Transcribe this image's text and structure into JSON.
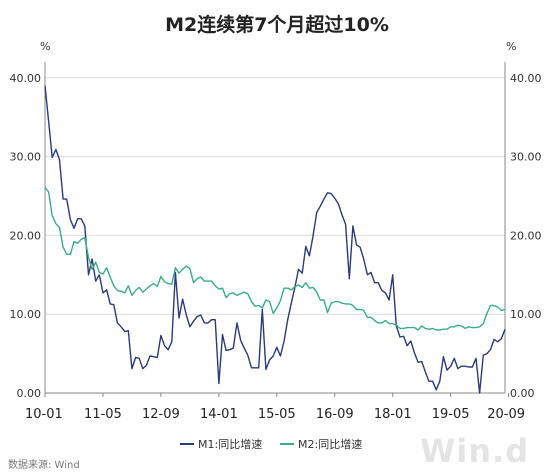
{
  "chart_data": {
    "type": "line",
    "title": "M2连续第7个月超过10%",
    "y_unit_left": "%",
    "y_unit_right": "%",
    "ylim": [
      0,
      42
    ],
    "yticks": [
      "0.00",
      "10.00",
      "20.00",
      "30.00",
      "40.00"
    ],
    "ytick_values": [
      0,
      10,
      20,
      30,
      40
    ],
    "xticks": [
      "10-01",
      "11-05",
      "12-09",
      "14-01",
      "15-05",
      "16-09",
      "18-01",
      "19-05",
      "20-09"
    ],
    "xtick_index": [
      0,
      16,
      32,
      48,
      64,
      80,
      96,
      112,
      128
    ],
    "grid": true,
    "legend_position": "bottom",
    "series": [
      {
        "name": "M1:同比增速",
        "color": "#2b3a7a",
        "values": [
          39.0,
          34.5,
          29.9,
          30.9,
          29.6,
          24.6,
          24.6,
          22.0,
          20.9,
          22.1,
          22.1,
          21.2,
          15.0,
          17.0,
          14.2,
          15.0,
          12.7,
          13.1,
          11.3,
          11.2,
          8.9,
          8.4,
          7.8,
          7.9,
          3.1,
          4.5,
          4.4,
          3.1,
          3.5,
          4.7,
          4.6,
          4.5,
          7.3,
          6.0,
          5.5,
          6.5,
          15.3,
          9.5,
          11.9,
          9.9,
          8.4,
          9.1,
          9.7,
          9.9,
          8.9,
          8.9,
          9.3,
          9.3,
          1.2,
          7.4,
          5.4,
          5.5,
          5.7,
          8.9,
          6.7,
          5.7,
          4.8,
          3.2,
          3.2,
          3.2,
          10.6,
          3.0,
          4.2,
          4.7,
          5.8,
          4.7,
          6.6,
          9.3,
          11.4,
          13.4,
          15.7,
          15.2,
          18.6,
          17.4,
          19.9,
          22.9,
          23.7,
          24.6,
          25.4,
          25.3,
          24.7,
          24.0,
          22.6,
          21.4,
          14.5,
          21.2,
          18.8,
          18.5,
          17.0,
          15.0,
          15.3,
          14.0,
          14.0,
          13.0,
          12.7,
          11.8,
          15.0,
          8.5,
          7.1,
          7.2,
          6.0,
          6.6,
          5.1,
          3.9,
          4.0,
          2.7,
          1.5,
          1.5,
          0.4,
          1.5,
          4.6,
          2.9,
          3.4,
          4.4,
          3.1,
          3.4,
          3.4,
          3.3,
          3.3,
          4.4,
          0.0,
          4.8,
          5.0,
          5.5,
          6.8,
          6.5,
          6.9,
          8.1
        ]
      },
      {
        "name": "M2:同比增速",
        "color": "#3cab8a",
        "values": [
          26.1,
          25.5,
          22.5,
          21.5,
          21.0,
          18.5,
          17.6,
          17.6,
          19.2,
          19.0,
          19.5,
          19.7,
          17.2,
          15.7,
          16.6,
          15.3,
          15.1,
          15.9,
          14.7,
          13.6,
          13.0,
          12.9,
          12.7,
          13.6,
          12.4,
          13.0,
          13.4,
          12.8,
          13.2,
          13.6,
          13.9,
          13.5,
          14.8,
          14.1,
          13.9,
          13.8,
          15.9,
          15.2,
          15.7,
          16.1,
          15.8,
          14.0,
          14.5,
          14.7,
          14.2,
          14.2,
          14.2,
          13.6,
          13.2,
          13.3,
          12.1,
          12.6,
          12.7,
          12.4,
          12.6,
          12.8,
          12.6,
          11.6,
          11.0,
          11.1,
          10.8,
          11.8,
          11.6,
          10.1,
          10.8,
          11.7,
          13.3,
          13.3,
          13.1,
          13.5,
          13.7,
          13.4,
          14.0,
          13.3,
          13.4,
          12.8,
          11.8,
          11.8,
          10.2,
          11.4,
          11.6,
          11.6,
          11.4,
          11.3,
          11.3,
          11.1,
          10.6,
          10.6,
          10.5,
          9.6,
          9.6,
          9.2,
          8.9,
          8.9,
          9.2,
          8.8,
          8.8,
          8.6,
          8.2,
          8.2,
          8.3,
          8.3,
          8.3,
          8.0,
          8.5,
          8.2,
          8.1,
          8.2,
          8.0,
          8.0,
          8.1,
          8.1,
          8.4,
          8.4,
          8.6,
          8.5,
          8.2,
          8.4,
          8.3,
          8.3,
          8.4,
          8.8,
          10.1,
          11.1,
          11.1,
          10.9,
          10.5,
          10.6
        ]
      }
    ]
  },
  "source_text": "数据来源: Wind",
  "watermark_text": "Win.d"
}
